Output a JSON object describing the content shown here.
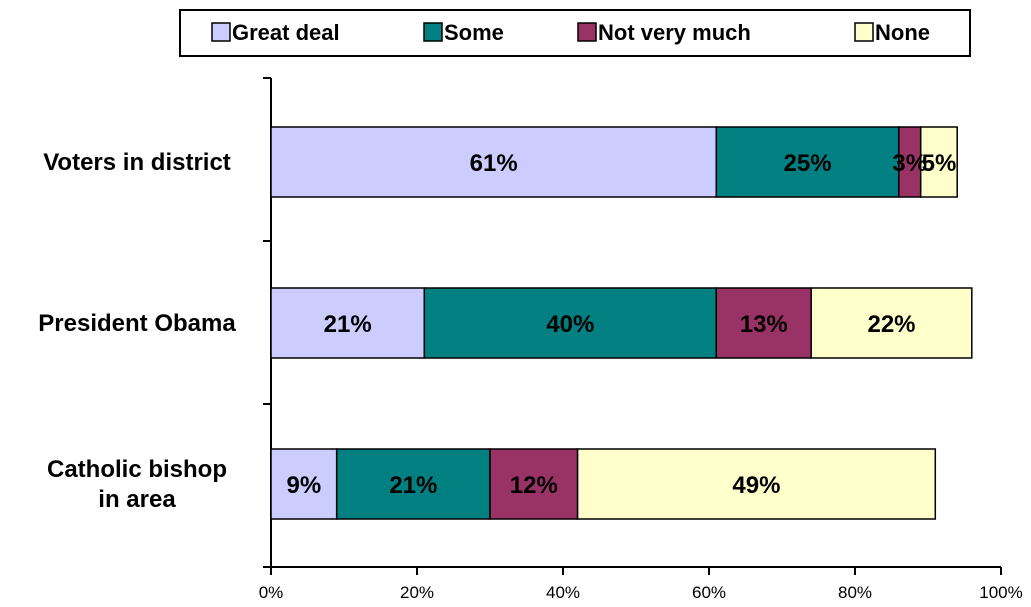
{
  "chart_data": {
    "type": "bar",
    "orientation": "horizontal",
    "stacked": true,
    "categories": [
      [
        "Voters in district"
      ],
      [
        "President Obama"
      ],
      [
        "Catholic bishop",
        "in area"
      ]
    ],
    "series": [
      {
        "name": "Great deal",
        "color": "#ccccff",
        "values": [
          61,
          21,
          9
        ],
        "labels": [
          "61%",
          "21%",
          "9%"
        ]
      },
      {
        "name": "Some",
        "color": "#008080",
        "values": [
          25,
          40,
          21
        ],
        "labels": [
          "25%",
          "40%",
          "21%"
        ]
      },
      {
        "name": "Not very much",
        "color": "#993366",
        "values": [
          3,
          13,
          12
        ],
        "labels": [
          "3%",
          "13%",
          "12%"
        ]
      },
      {
        "name": "None",
        "color": "#ffffcc",
        "values": [
          5,
          22,
          49
        ],
        "labels": [
          "5%",
          "22%",
          "49%"
        ]
      }
    ],
    "xlim": [
      0,
      100
    ],
    "xticks": [
      "0%",
      "20%",
      "40%",
      "60%",
      "80%",
      "100%"
    ],
    "legend_position": "top",
    "grid": false
  }
}
